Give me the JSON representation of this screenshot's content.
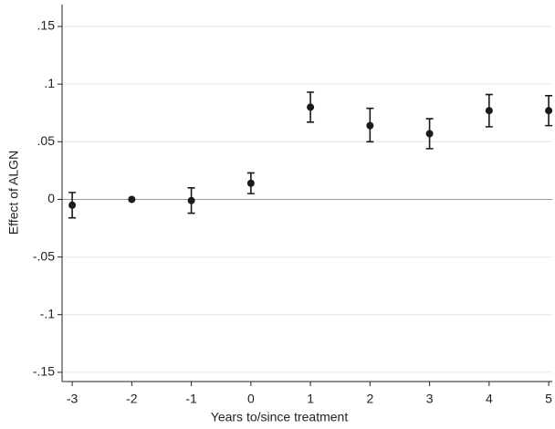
{
  "chart_data": {
    "type": "errorbar",
    "x_label": "Years to/since treatment",
    "y_label": "Effect of ALGN",
    "x": [
      -3,
      -2,
      -1,
      0,
      1,
      2,
      3,
      4,
      5
    ],
    "series": [
      {
        "color": "#1a1a1a",
        "values": [
          -0.005,
          0,
          -0.001,
          0.014,
          0.08,
          0.064,
          0.057,
          0.077,
          0.077
        ],
        "lower": [
          -0.016,
          null,
          -0.012,
          0.005,
          0.067,
          0.05,
          0.044,
          0.063,
          0.064
        ],
        "upper": [
          0.006,
          null,
          0.01,
          0.023,
          0.093,
          0.079,
          0.07,
          0.091,
          0.09
        ]
      }
    ],
    "xlim": [
      -3.17,
      5.06
    ],
    "xticks": [
      -3,
      -2,
      -1,
      0,
      1,
      2,
      3,
      4,
      5
    ],
    "ylim": [
      -0.158,
      0.169
    ],
    "yticks": [
      {
        "value": 0.15,
        "label": ".15"
      },
      {
        "value": 0.1,
        "label": ".1"
      },
      {
        "value": 0.05,
        "label": ".05"
      },
      0,
      {
        "value": -0.05,
        "label": "-.05"
      },
      {
        "value": -0.1,
        "label": "-.1"
      },
      {
        "value": -0.15,
        "label": "-.15"
      }
    ],
    "grid": true,
    "reference_line": 0
  }
}
